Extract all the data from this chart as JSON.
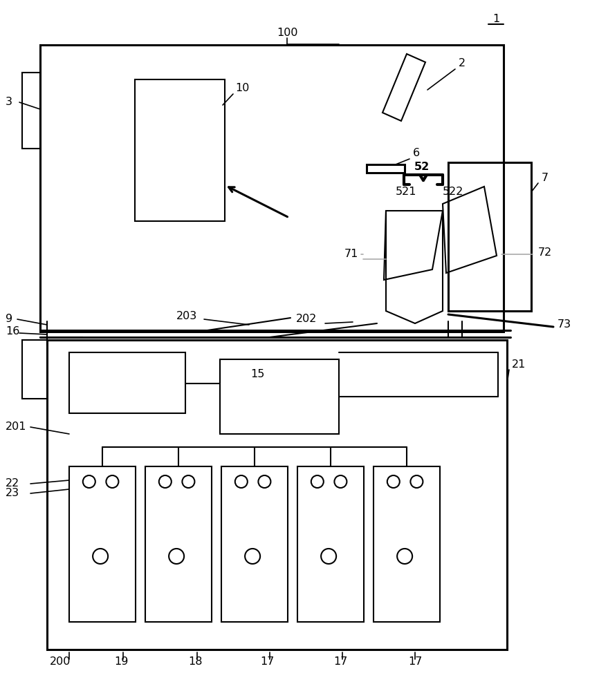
{
  "bg_color": "#ffffff",
  "line_color": "#000000",
  "gray_line_color": "#aaaaaa",
  "figsize": [
    8.66,
    10.0
  ],
  "dpi": 100
}
